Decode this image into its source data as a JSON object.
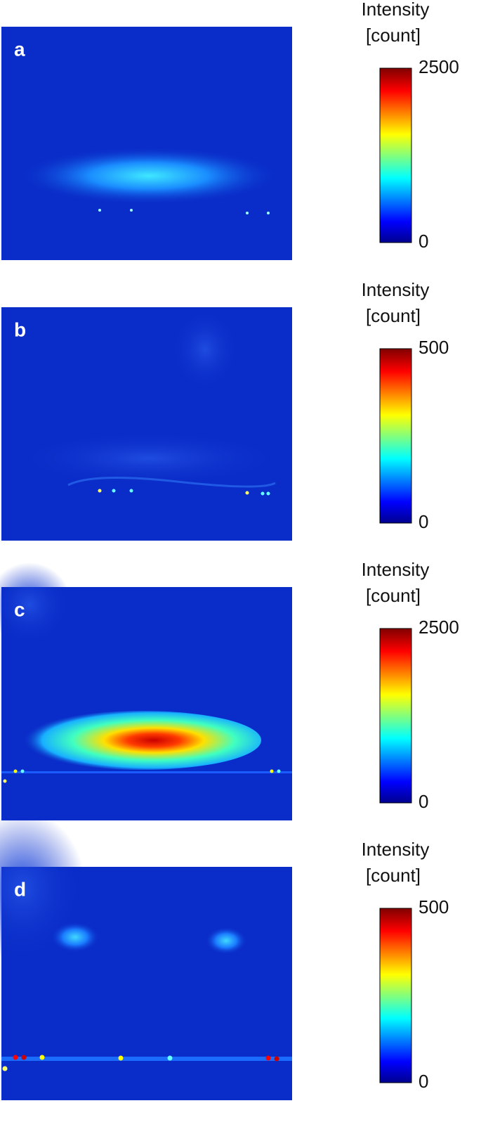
{
  "panels": [
    {
      "label": "a",
      "colorbar_title": "Intensity",
      "colorbar_unit": "[count]",
      "colorbar_ticks": [
        0,
        2500
      ]
    },
    {
      "label": "b",
      "colorbar_title": "Intensity",
      "colorbar_unit": "[count]",
      "colorbar_ticks": [
        0,
        500
      ]
    },
    {
      "label": "c",
      "colorbar_title": "Intensity",
      "colorbar_unit": "[count]",
      "colorbar_ticks": [
        0,
        2500
      ]
    },
    {
      "label": "d",
      "colorbar_title": "Intensity",
      "colorbar_unit": "[count]",
      "colorbar_ticks": [
        0,
        500
      ]
    }
  ]
}
